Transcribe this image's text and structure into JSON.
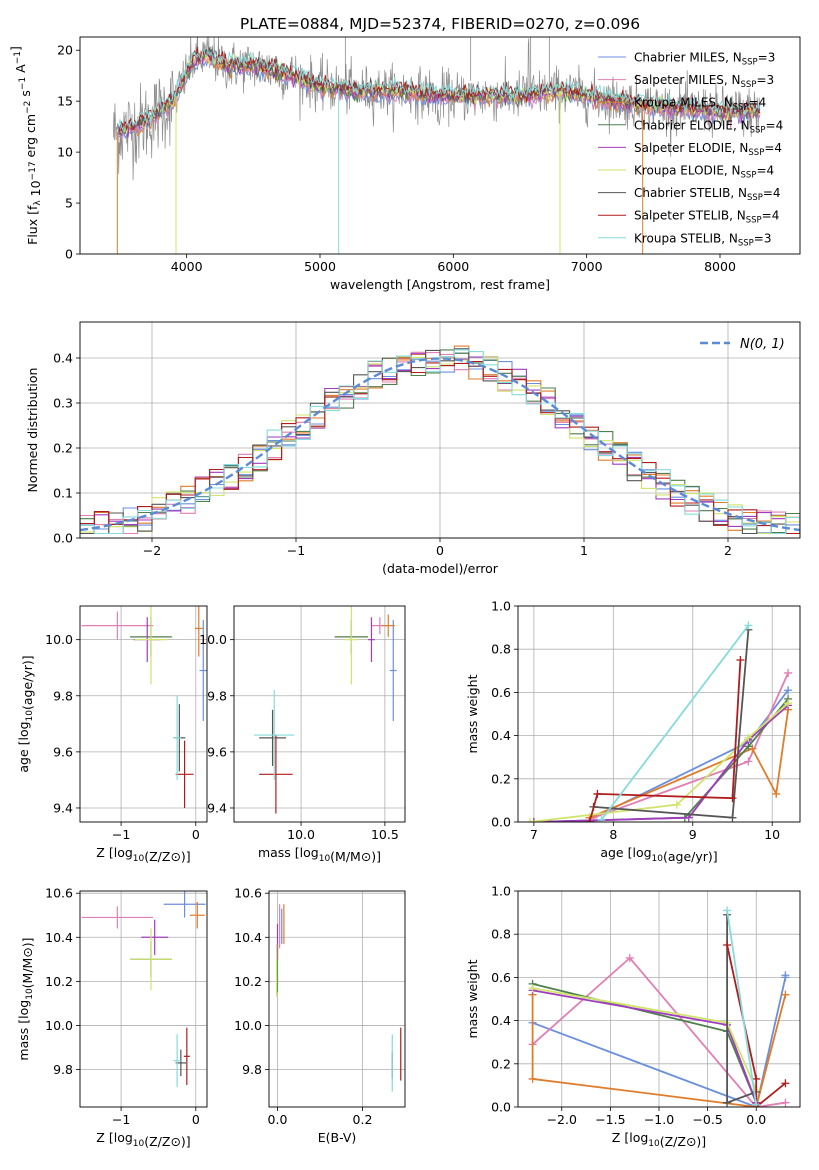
{
  "figure": {
    "title": "PLATE=0884, MJD=52374, FIBERID=0270, z=0.096"
  },
  "colors": {
    "chabrier_miles": "#6b8fdc",
    "salpeter_miles": "#e17fb5",
    "kroupa_miles": "#e07c2a",
    "chabrier_elodie": "#4f7f4f",
    "salpeter_elodie": "#a03cbf",
    "kroupa_elodie": "#cfe46a",
    "chabrier_stelib": "#555555",
    "salpeter_stelib": "#b01c1c",
    "kroupa_stelib": "#86dbdb",
    "data": "#8c8c8c",
    "gaussian": "#5b8bd6",
    "grid": "#b0b0b0"
  },
  "chart_data": [
    {
      "id": "spectrum",
      "type": "line",
      "xlabel": "wavelength [Angstrom, rest frame]",
      "ylabel": "Flux [f_λ 10^-17 erg cm^-2 s^-1 A^-1]",
      "xlim": [
        3200,
        8600
      ],
      "ylim": [
        0,
        21.3
      ],
      "xticks": [
        4000,
        5000,
        6000,
        7000,
        8000
      ],
      "yticks": [
        0,
        5,
        10,
        15,
        20
      ],
      "grid": false,
      "legend_position": "right",
      "legend": [
        {
          "label": "Chabrier MILES, N",
          "sub": "SSP",
          "suffix": "=3",
          "color_key": "chabrier_miles"
        },
        {
          "label": "Salpeter MILES, N",
          "sub": "SSP",
          "suffix": "=3",
          "color_key": "salpeter_miles"
        },
        {
          "label": "Kroupa MILES, N",
          "sub": "SSP",
          "suffix": "=4",
          "color_key": "kroupa_miles"
        },
        {
          "label": "Chabrier ELODIE, N",
          "sub": "SSP",
          "suffix": "=4",
          "color_key": "chabrier_elodie"
        },
        {
          "label": "Salpeter ELODIE, N",
          "sub": "SSP",
          "suffix": "=4",
          "color_key": "salpeter_elodie"
        },
        {
          "label": "Kroupa ELODIE, N",
          "sub": "SSP",
          "suffix": "=4",
          "color_key": "kroupa_elodie"
        },
        {
          "label": "Chabrier STELIB, N",
          "sub": "SSP",
          "suffix": "=4",
          "color_key": "chabrier_stelib"
        },
        {
          "label": "Salpeter STELIB, N",
          "sub": "SSP",
          "suffix": "=4",
          "color_key": "salpeter_stelib"
        },
        {
          "label": "Kroupa STELIB, N",
          "sub": "SSP",
          "suffix": "=3",
          "color_key": "kroupa_stelib"
        }
      ],
      "continuum": [
        [
          3500,
          12
        ],
        [
          3700,
          13
        ],
        [
          3900,
          15
        ],
        [
          4050,
          19
        ],
        [
          4150,
          19.5
        ],
        [
          4300,
          18.5
        ],
        [
          4500,
          18.5
        ],
        [
          4800,
          17.5
        ],
        [
          5000,
          16.5
        ],
        [
          5300,
          16
        ],
        [
          5600,
          16
        ],
        [
          6000,
          15.5
        ],
        [
          6500,
          15.5
        ],
        [
          6800,
          16
        ],
        [
          7000,
          15.5
        ],
        [
          7500,
          14.5
        ],
        [
          8000,
          14
        ],
        [
          8300,
          14
        ]
      ]
    },
    {
      "id": "histogram",
      "type": "line",
      "xlabel": "(data-model)/error",
      "ylabel": "Normed distribution",
      "xlim": [
        -2.5,
        2.5
      ],
      "ylim": [
        0,
        0.48
      ],
      "xticks": [
        -2,
        -1,
        0,
        1,
        2
      ],
      "yticks": [
        0.0,
        0.1,
        0.2,
        0.3,
        0.4
      ],
      "grid": true,
      "bin_width": 0.1,
      "legend_position": "top-right",
      "legend": [
        {
          "label": "N(0, 1)",
          "color_key": "gaussian"
        }
      ]
    },
    {
      "id": "age-vs-metallicity",
      "type": "scatter",
      "xlabel": "Z [log10(Z/Z⊙)]",
      "ylabel": "age [log10(age/yr)]",
      "xlim": [
        -1.55,
        0.15
      ],
      "ylim": [
        9.35,
        10.12
      ],
      "xticks": [
        -1,
        0
      ],
      "yticks": [
        9.4,
        9.6,
        9.8,
        10.0
      ],
      "grid": true,
      "points": [
        {
          "color_key": "chabrier_miles",
          "x": 0.1,
          "y": 9.89,
          "xe": 0.05,
          "ye": 0.18
        },
        {
          "color_key": "salpeter_miles",
          "x": -1.05,
          "y": 10.05,
          "xe": 0.48,
          "ye": 0.05
        },
        {
          "color_key": "kroupa_miles",
          "x": 0.04,
          "y": 10.04,
          "xe": 0.05,
          "ye": 0.1
        },
        {
          "color_key": "chabrier_elodie",
          "x": -0.6,
          "y": 10.01,
          "xe": 0.28,
          "ye": 0.07
        },
        {
          "color_key": "salpeter_elodie",
          "x": -0.65,
          "y": 10.0,
          "xe": 0.18,
          "ye": 0.08
        },
        {
          "color_key": "kroupa_elodie",
          "x": -0.6,
          "y": 10.0,
          "xe": 0.22,
          "ye": 0.16
        },
        {
          "color_key": "chabrier_stelib",
          "x": -0.22,
          "y": 9.65,
          "xe": 0.08,
          "ye": 0.12
        },
        {
          "color_key": "salpeter_stelib",
          "x": -0.15,
          "y": 9.52,
          "xe": 0.12,
          "ye": 0.12
        },
        {
          "color_key": "kroupa_stelib",
          "x": -0.25,
          "y": 9.65,
          "xe": 0.05,
          "ye": 0.15
        }
      ]
    },
    {
      "id": "age-vs-mass",
      "type": "scatter",
      "xlabel": "mass [log10(M/M⊙)]",
      "ylabel": "",
      "xlim": [
        9.6,
        10.62
      ],
      "ylim": [
        9.35,
        10.12
      ],
      "xticks": [
        10.0,
        10.5
      ],
      "yticks": [
        9.4,
        9.6,
        9.8,
        10.0
      ],
      "grid": true,
      "points": [
        {
          "color_key": "chabrier_miles",
          "x": 10.55,
          "y": 9.89,
          "xe": 0.02,
          "ye": 0.18
        },
        {
          "color_key": "salpeter_miles",
          "x": 10.47,
          "y": 10.05,
          "xe": 0.05,
          "ye": 0.03
        },
        {
          "color_key": "kroupa_miles",
          "x": 10.52,
          "y": 10.05,
          "xe": 0.04,
          "ye": 0.04
        },
        {
          "color_key": "chabrier_elodie",
          "x": 10.3,
          "y": 10.01,
          "xe": 0.1,
          "ye": 0.06
        },
        {
          "color_key": "salpeter_elodie",
          "x": 10.42,
          "y": 10.0,
          "xe": 0.02,
          "ye": 0.08
        },
        {
          "color_key": "kroupa_elodie",
          "x": 10.3,
          "y": 10.0,
          "xe": 0.04,
          "ye": 0.16
        },
        {
          "color_key": "chabrier_stelib",
          "x": 9.83,
          "y": 9.65,
          "xe": 0.08,
          "ye": 0.1
        },
        {
          "color_key": "salpeter_stelib",
          "x": 9.85,
          "y": 9.52,
          "xe": 0.1,
          "ye": 0.14
        },
        {
          "color_key": "kroupa_stelib",
          "x": 9.84,
          "y": 9.66,
          "xe": 0.12,
          "ye": 0.16
        }
      ]
    },
    {
      "id": "mass-weight-vs-age",
      "type": "line",
      "xlabel": "age [log10(age/yr)]",
      "ylabel": "mass weight",
      "xlim": [
        6.8,
        10.35
      ],
      "ylim": [
        0,
        1.0
      ],
      "xticks": [
        7,
        8,
        9,
        10
      ],
      "yticks": [
        0.0,
        0.2,
        0.4,
        0.6,
        0.8,
        1.0
      ],
      "grid": true,
      "series": [
        {
          "color_key": "chabrier_miles",
          "x": [
            7.75,
            9.7,
            10.2
          ],
          "y": [
            0.02,
            0.37,
            0.61
          ]
        },
        {
          "color_key": "salpeter_miles",
          "x": [
            7.75,
            9.7,
            10.2
          ],
          "y": [
            0.02,
            0.28,
            0.69
          ]
        },
        {
          "color_key": "kroupa_miles",
          "x": [
            7.7,
            9.75,
            10.05,
            10.2
          ],
          "y": [
            0.02,
            0.34,
            0.13,
            0.52
          ]
        },
        {
          "color_key": "chabrier_elodie",
          "x": [
            7.0,
            8.9,
            9.7,
            10.2
          ],
          "y": [
            0.0,
            0.02,
            0.35,
            0.57
          ]
        },
        {
          "color_key": "salpeter_elodie",
          "x": [
            7.0,
            8.95,
            9.7,
            10.2
          ],
          "y": [
            0.0,
            0.02,
            0.38,
            0.54
          ]
        },
        {
          "color_key": "kroupa_elodie",
          "x": [
            6.95,
            8.8,
            9.7,
            10.2
          ],
          "y": [
            0.0,
            0.08,
            0.39,
            0.55
          ]
        },
        {
          "color_key": "chabrier_stelib",
          "x": [
            7.75,
            9.5,
            9.7
          ],
          "y": [
            0.07,
            0.02,
            0.89
          ]
        },
        {
          "color_key": "salpeter_stelib",
          "x": [
            7.7,
            7.8,
            9.5,
            9.6
          ],
          "y": [
            0.0,
            0.13,
            0.11,
            0.75
          ]
        },
        {
          "color_key": "kroupa_stelib",
          "x": [
            7.85,
            9.7
          ],
          "y": [
            0.01,
            0.91
          ]
        }
      ]
    },
    {
      "id": "mass-vs-metallicity",
      "type": "scatter",
      "xlabel": "Z [log10(Z/Z⊙)]",
      "ylabel": "mass [log10(M/M⊙)]",
      "xlim": [
        -1.55,
        0.15
      ],
      "ylim": [
        9.63,
        10.61
      ],
      "xticks": [
        -1,
        0
      ],
      "yticks": [
        9.8,
        10.0,
        10.2,
        10.4,
        10.6
      ],
      "grid": true,
      "points": [
        {
          "color_key": "chabrier_miles",
          "x": -0.15,
          "y": 10.55,
          "xe": 0.28,
          "ye": 0.06
        },
        {
          "color_key": "salpeter_miles",
          "x": -1.05,
          "y": 10.49,
          "xe": 0.48,
          "ye": 0.05
        },
        {
          "color_key": "kroupa_miles",
          "x": 0.02,
          "y": 10.5,
          "xe": 0.1,
          "ye": 0.06
        },
        {
          "color_key": "chabrier_elodie",
          "x": -0.6,
          "y": 10.3,
          "xe": 0.28,
          "ye": 0.08
        },
        {
          "color_key": "salpeter_elodie",
          "x": -0.55,
          "y": 10.4,
          "xe": 0.18,
          "ye": 0.08
        },
        {
          "color_key": "kroupa_elodie",
          "x": -0.6,
          "y": 10.3,
          "xe": 0.28,
          "ye": 0.14
        },
        {
          "color_key": "chabrier_stelib",
          "x": -0.2,
          "y": 9.83,
          "xe": 0.07,
          "ye": 0.06
        },
        {
          "color_key": "salpeter_stelib",
          "x": -0.12,
          "y": 9.86,
          "xe": 0.04,
          "ye": 0.13
        },
        {
          "color_key": "kroupa_stelib",
          "x": -0.25,
          "y": 9.84,
          "xe": 0.05,
          "ye": 0.12
        }
      ]
    },
    {
      "id": "mass-vs-extinction",
      "type": "scatter",
      "xlabel": "E(B-V)",
      "ylabel": "",
      "xlim": [
        -0.02,
        0.3
      ],
      "ylim": [
        9.63,
        10.61
      ],
      "xticks": [
        0.0,
        0.2
      ],
      "yticks": [
        9.8,
        10.0,
        10.2,
        10.4,
        10.6
      ],
      "grid": true,
      "points": [
        {
          "color_key": "chabrier_miles",
          "x": 0.01,
          "y": 10.45,
          "xe": 0.0,
          "ye": 0.08
        },
        {
          "color_key": "salpeter_miles",
          "x": 0.005,
          "y": 10.45,
          "xe": 0.0,
          "ye": 0.1
        },
        {
          "color_key": "kroupa_miles",
          "x": 0.015,
          "y": 10.46,
          "xe": 0.0,
          "ye": 0.09
        },
        {
          "color_key": "chabrier_elodie",
          "x": 0.0,
          "y": 10.25,
          "xe": 0.0,
          "ye": 0.1
        },
        {
          "color_key": "salpeter_elodie",
          "x": 0.0,
          "y": 10.38,
          "xe": 0.0,
          "ye": 0.08
        },
        {
          "color_key": "kroupa_elodie",
          "x": -0.002,
          "y": 10.25,
          "xe": 0.0,
          "ye": 0.12
        },
        {
          "color_key": "chabrier_stelib",
          "x": 0.27,
          "y": 9.82,
          "xe": 0.0,
          "ye": 0.06
        },
        {
          "color_key": "salpeter_stelib",
          "x": 0.29,
          "y": 9.87,
          "xe": 0.0,
          "ye": 0.12
        },
        {
          "color_key": "kroupa_stelib",
          "x": 0.27,
          "y": 9.83,
          "xe": 0.0,
          "ye": 0.13
        }
      ]
    },
    {
      "id": "mass-weight-vs-metallicity",
      "type": "line",
      "xlabel": "Z [log10(Z/Z⊙)]",
      "ylabel": "mass weight",
      "xlim": [
        -2.45,
        0.45
      ],
      "ylim": [
        0,
        1.0
      ],
      "xticks": [
        -2.0,
        -1.5,
        -1.0,
        -0.5,
        0.0
      ],
      "yticks": [
        0.0,
        0.2,
        0.4,
        0.6,
        0.8,
        1.0
      ],
      "grid": true,
      "series": [
        {
          "color_key": "chabrier_miles",
          "x": [
            -2.3,
            0.0,
            0.3,
            0.3
          ],
          "y": [
            0.39,
            0.0,
            0.6,
            0.61
          ]
        },
        {
          "color_key": "salpeter_miles",
          "x": [
            -2.3,
            -1.3,
            0.0,
            0.3
          ],
          "y": [
            0.29,
            0.69,
            0.0,
            0.02
          ]
        },
        {
          "color_key": "kroupa_miles",
          "x": [
            -2.3,
            -2.3,
            0.0,
            0.3
          ],
          "y": [
            0.52,
            0.13,
            0.0,
            0.52
          ]
        },
        {
          "color_key": "chabrier_elodie",
          "x": [
            -2.3,
            -0.3,
            0.0
          ],
          "y": [
            0.57,
            0.35,
            0.02
          ]
        },
        {
          "color_key": "salpeter_elodie",
          "x": [
            -2.3,
            -0.3,
            0.0
          ],
          "y": [
            0.54,
            0.38,
            0.02
          ]
        },
        {
          "color_key": "kroupa_elodie",
          "x": [
            -2.3,
            -0.3,
            0.0
          ],
          "y": [
            0.55,
            0.39,
            0.08
          ]
        },
        {
          "color_key": "chabrier_stelib",
          "x": [
            -0.3,
            -0.3,
            0.0
          ],
          "y": [
            0.89,
            0.02,
            0.07
          ]
        },
        {
          "color_key": "salpeter_stelib",
          "x": [
            -0.3,
            0.0,
            0.0,
            0.3
          ],
          "y": [
            0.75,
            0.13,
            0.0,
            0.11
          ]
        },
        {
          "color_key": "kroupa_stelib",
          "x": [
            -0.3,
            0.0
          ],
          "y": [
            0.91,
            0.01
          ]
        }
      ]
    }
  ]
}
